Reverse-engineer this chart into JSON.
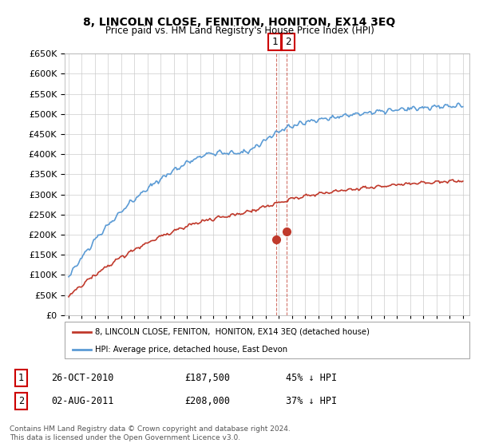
{
  "title": "8, LINCOLN CLOSE, FENITON, HONITON, EX14 3EQ",
  "subtitle": "Price paid vs. HM Land Registry's House Price Index (HPI)",
  "ylim": [
    0,
    650000
  ],
  "yticks": [
    0,
    50000,
    100000,
    150000,
    200000,
    250000,
    300000,
    350000,
    400000,
    450000,
    500000,
    550000,
    600000,
    650000
  ],
  "xlim_start": 1994.7,
  "xlim_end": 2025.5,
  "blue_color": "#5b9bd5",
  "red_color": "#c0392b",
  "sale1_x": 2010.82,
  "sale1_y": 187500,
  "sale2_x": 2011.58,
  "sale2_y": 208000,
  "legend_label_red": "8, LINCOLN CLOSE, FENITON,  HONITON, EX14 3EQ (detached house)",
  "legend_label_blue": "HPI: Average price, detached house, East Devon",
  "table_rows": [
    [
      "1",
      "26-OCT-2010",
      "£187,500",
      "45% ↓ HPI"
    ],
    [
      "2",
      "02-AUG-2011",
      "£208,000",
      "37% ↓ HPI"
    ]
  ],
  "footnote": "Contains HM Land Registry data © Crown copyright and database right 2024.\nThis data is licensed under the Open Government Licence v3.0.",
  "background_color": "#ffffff",
  "grid_color": "#cccccc"
}
